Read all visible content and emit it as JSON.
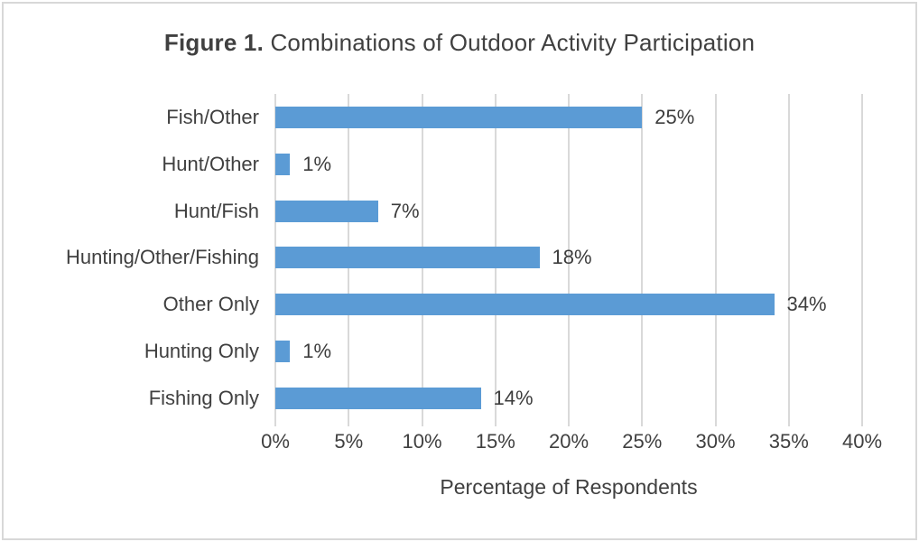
{
  "figure": {
    "title_bold": "Figure 1.",
    "title_rest": " Combinations of Outdoor Activity Participation"
  },
  "chart_data": {
    "type": "bar",
    "orientation": "horizontal",
    "title": "Figure 1. Combinations of Outdoor Activity Participation",
    "categories": [
      "Fish/Other",
      "Hunt/Other",
      "Hunt/Fish",
      "Hunting/Other/Fishing",
      "Other Only",
      "Hunting Only",
      "Fishing Only"
    ],
    "values": [
      25,
      1,
      7,
      18,
      34,
      1,
      14
    ],
    "data_labels": [
      "25%",
      "1%",
      "7%",
      "18%",
      "34%",
      "1%",
      "14%"
    ],
    "xlabel": "Percentage of Respondents",
    "x_ticks": [
      "0%",
      "5%",
      "10%",
      "15%",
      "20%",
      "25%",
      "30%",
      "35%",
      "40%"
    ],
    "xlim": [
      0,
      40
    ],
    "grid": "vertical-gridlines-on",
    "legend": "none",
    "colors": {
      "bar": "#5b9bd5",
      "gridline": "#d9d9d9",
      "text": "#404040",
      "border": "#d8d8d8"
    }
  }
}
